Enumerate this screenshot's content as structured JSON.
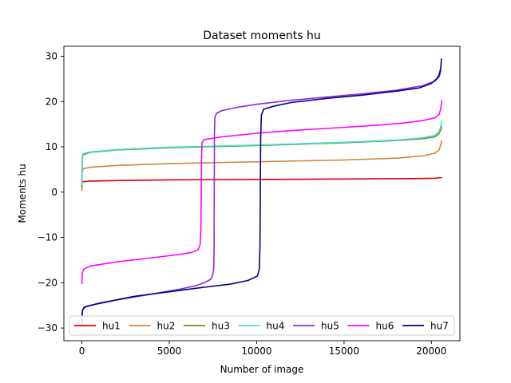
{
  "chart_data": {
    "type": "line",
    "title": "Dataset moments hu",
    "xlabel": "Number of image",
    "ylabel": "Moments hu",
    "xlim": [
      -1030,
      21630
    ],
    "ylim": [
      -32.8,
      32.2
    ],
    "xticks": [
      0,
      5000,
      10000,
      15000,
      20000
    ],
    "yticks": [
      -30,
      -20,
      -10,
      0,
      10,
      20,
      30
    ],
    "grid": false,
    "legend_position": "lower-center",
    "legend_columns": 7,
    "series": [
      {
        "name": "hu1",
        "color": "#e00000",
        "points": [
          [
            0,
            2.0
          ],
          [
            50,
            2.3
          ],
          [
            500,
            2.45
          ],
          [
            2000,
            2.55
          ],
          [
            5000,
            2.7
          ],
          [
            10000,
            2.8
          ],
          [
            15000,
            2.9
          ],
          [
            19000,
            3.0
          ],
          [
            20200,
            3.05
          ],
          [
            20500,
            3.2
          ],
          [
            20590,
            3.2
          ]
        ]
      },
      {
        "name": "hu2",
        "color": "#cd853f",
        "points": [
          [
            0,
            0.3
          ],
          [
            20,
            4.5
          ],
          [
            80,
            5.2
          ],
          [
            500,
            5.5
          ],
          [
            2000,
            5.9
          ],
          [
            5000,
            6.3
          ],
          [
            10000,
            6.7
          ],
          [
            15000,
            7.1
          ],
          [
            18000,
            7.5
          ],
          [
            19500,
            8.0
          ],
          [
            20200,
            8.6
          ],
          [
            20450,
            9.4
          ],
          [
            20540,
            10.5
          ],
          [
            20590,
            11.5
          ]
        ]
      },
      {
        "name": "hu3",
        "color": "#6b8e23",
        "points": [
          [
            0,
            1.0
          ],
          [
            20,
            7.5
          ],
          [
            80,
            8.3
          ],
          [
            500,
            8.8
          ],
          [
            2000,
            9.3
          ],
          [
            5000,
            9.8
          ],
          [
            10000,
            10.3
          ],
          [
            15000,
            10.9
          ],
          [
            18000,
            11.4
          ],
          [
            19500,
            11.8
          ],
          [
            20200,
            12.2
          ],
          [
            20450,
            13.0
          ],
          [
            20540,
            13.8
          ],
          [
            20590,
            14.5
          ]
        ]
      },
      {
        "name": "hu4",
        "color": "#40e0d0",
        "points": [
          [
            0,
            1.5
          ],
          [
            20,
            7.8
          ],
          [
            80,
            8.5
          ],
          [
            500,
            8.9
          ],
          [
            2000,
            9.4
          ],
          [
            5000,
            9.9
          ],
          [
            10000,
            10.4
          ],
          [
            15000,
            11.0
          ],
          [
            18000,
            11.5
          ],
          [
            19500,
            12.0
          ],
          [
            20200,
            12.5
          ],
          [
            20450,
            13.5
          ],
          [
            20540,
            14.6
          ],
          [
            20590,
            15.8
          ]
        ]
      },
      {
        "name": "hu5",
        "color": "#8a2be2",
        "points": [
          [
            0,
            -29.5
          ],
          [
            20,
            -26.5
          ],
          [
            100,
            -25.5
          ],
          [
            500,
            -25.0
          ],
          [
            2000,
            -23.8
          ],
          [
            4000,
            -22.5
          ],
          [
            5500,
            -21.5
          ],
          [
            6500,
            -20.7
          ],
          [
            7000,
            -20.0
          ],
          [
            7350,
            -19.3
          ],
          [
            7480,
            -18.5
          ],
          [
            7540,
            -17.0
          ],
          [
            7565,
            -13.0
          ],
          [
            7575,
            0
          ],
          [
            7585,
            13.0
          ],
          [
            7610,
            16.5
          ],
          [
            7700,
            17.4
          ],
          [
            8000,
            18.0
          ],
          [
            9000,
            18.8
          ],
          [
            10000,
            19.4
          ],
          [
            12000,
            20.3
          ],
          [
            14000,
            21.0
          ],
          [
            16000,
            21.7
          ],
          [
            18000,
            22.5
          ],
          [
            19500,
            23.5
          ],
          [
            20200,
            24.5
          ],
          [
            20450,
            25.5
          ],
          [
            20550,
            27.0
          ]
        ]
      },
      {
        "name": "hu6",
        "color": "#ff00ff",
        "points": [
          [
            0,
            -20.3
          ],
          [
            20,
            -18.0
          ],
          [
            100,
            -17.0
          ],
          [
            500,
            -16.3
          ],
          [
            2000,
            -15.4
          ],
          [
            4000,
            -14.5
          ],
          [
            5500,
            -13.8
          ],
          [
            6300,
            -13.3
          ],
          [
            6650,
            -12.7
          ],
          [
            6770,
            -11.5
          ],
          [
            6810,
            -8.0
          ],
          [
            6830,
            0
          ],
          [
            6850,
            8.0
          ],
          [
            6880,
            11.0
          ],
          [
            7000,
            11.6
          ],
          [
            8000,
            12.2
          ],
          [
            10000,
            13.0
          ],
          [
            12000,
            13.6
          ],
          [
            15000,
            14.3
          ],
          [
            17000,
            14.8
          ],
          [
            18500,
            15.3
          ],
          [
            19500,
            15.8
          ],
          [
            20200,
            16.4
          ],
          [
            20450,
            17.2
          ],
          [
            20540,
            18.5
          ],
          [
            20590,
            20.3
          ]
        ]
      },
      {
        "name": "hu7",
        "color": "#000080",
        "points": [
          [
            0,
            -28.5
          ],
          [
            10,
            -27.0
          ],
          [
            40,
            -26.0
          ],
          [
            200,
            -25.3
          ],
          [
            1000,
            -24.5
          ],
          [
            3000,
            -23.0
          ],
          [
            5000,
            -22.0
          ],
          [
            7000,
            -21.0
          ],
          [
            8500,
            -20.3
          ],
          [
            9500,
            -19.5
          ],
          [
            10050,
            -18.5
          ],
          [
            10150,
            -17.0
          ],
          [
            10190,
            -12.0
          ],
          [
            10210,
            0
          ],
          [
            10230,
            12.0
          ],
          [
            10270,
            17.0
          ],
          [
            10400,
            18.3
          ],
          [
            11000,
            19.0
          ],
          [
            12000,
            19.8
          ],
          [
            14000,
            20.7
          ],
          [
            16000,
            21.4
          ],
          [
            18000,
            22.3
          ],
          [
            19300,
            23.0
          ],
          [
            20000,
            24.0
          ],
          [
            20300,
            25.0
          ],
          [
            20450,
            26.0
          ],
          [
            20540,
            27.5
          ],
          [
            20570,
            29.5
          ]
        ]
      }
    ]
  }
}
